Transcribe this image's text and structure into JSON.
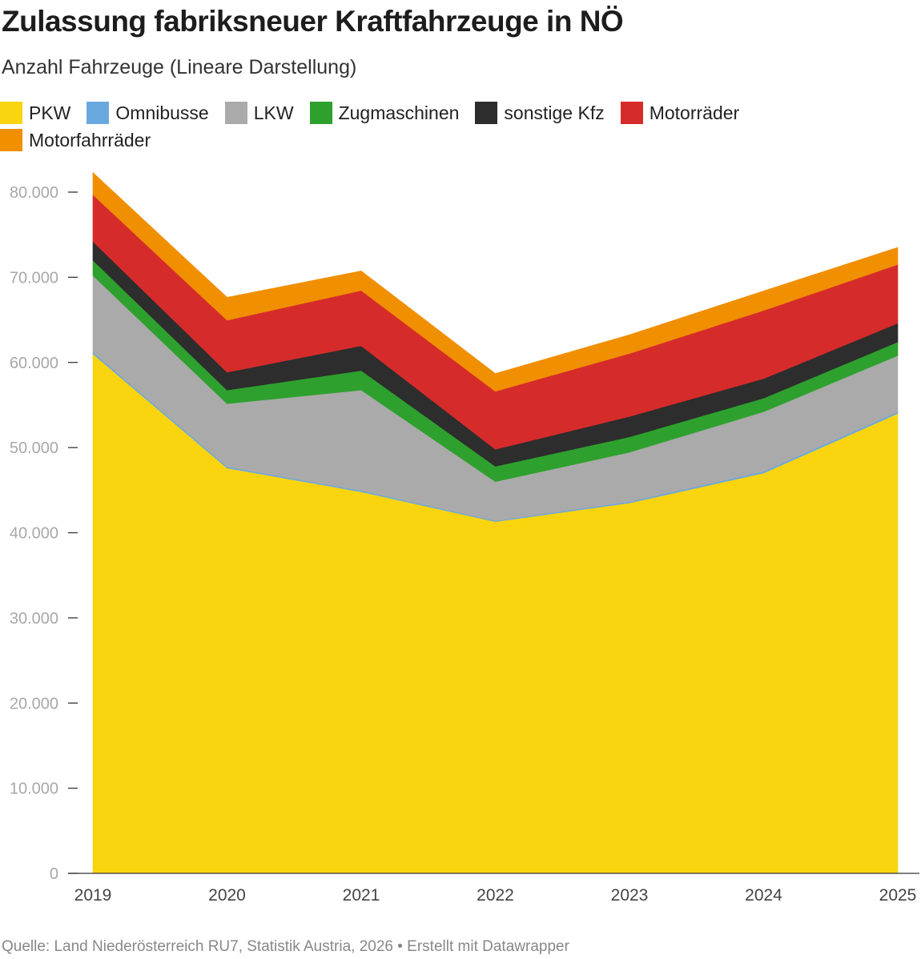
{
  "title": "Zulassung fabriksneuer Kraftfahrzeuge in NÖ",
  "subtitle": "Anzahl Fahrzeuge (Lineare Darstellung)",
  "source": "Quelle: Land Niederösterreich RU7, Statistik Austria, 2026 • Erstellt mit Datawrapper",
  "chart_data": {
    "type": "area",
    "stacked": true,
    "x": [
      "2019",
      "2020",
      "2021",
      "2022",
      "2023",
      "2024",
      "2025"
    ],
    "ylim": [
      0,
      80000
    ],
    "yticks": [
      0,
      10000,
      20000,
      30000,
      40000,
      50000,
      60000,
      70000,
      80000
    ],
    "ytick_labels": [
      "0",
      "10.000",
      "20.000",
      "30.000",
      "40.000",
      "50.000",
      "60.000",
      "70.000",
      "80.000"
    ],
    "legend_position": "top-left",
    "grid": false,
    "series": [
      {
        "name": "PKW",
        "color": "#fad40f",
        "values": [
          61000,
          47600,
          44800,
          41300,
          43500,
          47000,
          54000
        ]
      },
      {
        "name": "Omnibusse",
        "color": "#6aa8e0",
        "values": [
          200,
          150,
          150,
          100,
          150,
          200,
          200
        ]
      },
      {
        "name": "LKW",
        "color": "#aaaaaa",
        "values": [
          9000,
          7400,
          11800,
          4600,
          5800,
          7000,
          6600
        ]
      },
      {
        "name": "Zugmaschinen",
        "color": "#2ea02e",
        "values": [
          1800,
          1600,
          2300,
          1800,
          1800,
          1600,
          1600
        ]
      },
      {
        "name": "sonstige Kfz",
        "color": "#2d2d2d",
        "values": [
          2200,
          2100,
          2900,
          2000,
          2400,
          2300,
          2200
        ]
      },
      {
        "name": "Motorräder",
        "color": "#d62b2b",
        "values": [
          5500,
          6100,
          6500,
          6800,
          7400,
          8000,
          6900
        ]
      },
      {
        "name": "Motorfahrräder",
        "color": "#f08f00",
        "values": [
          2600,
          2700,
          2300,
          2100,
          2200,
          2300,
          2000
        ]
      }
    ]
  }
}
